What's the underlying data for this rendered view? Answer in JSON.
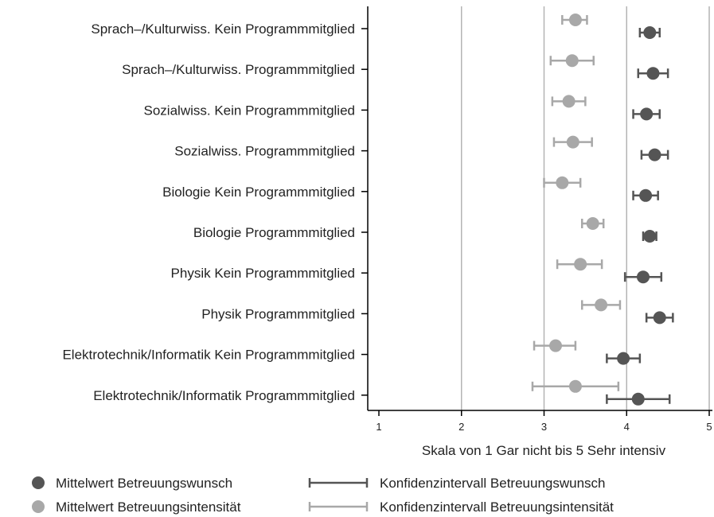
{
  "chart_data": {
    "type": "scatter",
    "categories": [
      "Sprach–/Kulturwiss. Kein Programmmitglied",
      "Sprach–/Kulturwiss. Programmmitglied",
      "Sozialwiss. Kein Programmmitglied",
      "Sozialwiss. Programmmitglied",
      "Biologie Kein Programmmitglied",
      "Biologie Programmmitglied",
      "Physik Kein Programmmitglied",
      "Physik Programmmitglied",
      "Elektrotechnik/Informatik Kein Programmmitglied",
      "Elektrotechnik/Informatik Programmmitglied"
    ],
    "series": [
      {
        "name": "Mittelwert Betreuungswunsch",
        "ci_name": "Konfidenzintervall Betreuungswunsch",
        "color": "#555555",
        "values": [
          4.28,
          4.32,
          4.24,
          4.34,
          4.23,
          4.28,
          4.2,
          4.4,
          3.96,
          4.14
        ],
        "ci_low": [
          4.16,
          4.14,
          4.08,
          4.18,
          4.08,
          4.2,
          3.98,
          4.24,
          3.76,
          3.76
        ],
        "ci_high": [
          4.4,
          4.5,
          4.4,
          4.5,
          4.38,
          4.36,
          4.42,
          4.56,
          4.16,
          4.52
        ]
      },
      {
        "name": "Mittelwert Betreuungsintensität",
        "ci_name": "Konfidenzintervall Betreuungsintensität",
        "color": "#a8a8a8",
        "values": [
          3.38,
          3.34,
          3.3,
          3.35,
          3.22,
          3.59,
          3.44,
          3.69,
          3.14,
          3.38
        ],
        "ci_low": [
          3.22,
          3.08,
          3.1,
          3.12,
          3.0,
          3.46,
          3.16,
          3.46,
          2.88,
          2.86
        ],
        "ci_high": [
          3.52,
          3.6,
          3.5,
          3.58,
          3.44,
          3.72,
          3.7,
          3.92,
          3.38,
          3.9
        ]
      }
    ],
    "xlabel": "Skala von 1 Gar nicht bis 5 Sehr intensiv",
    "xlim": [
      1,
      5
    ],
    "xticks": [
      "1",
      "2",
      "3",
      "4",
      "5"
    ],
    "grid": "vertical",
    "legend": "bottom"
  }
}
